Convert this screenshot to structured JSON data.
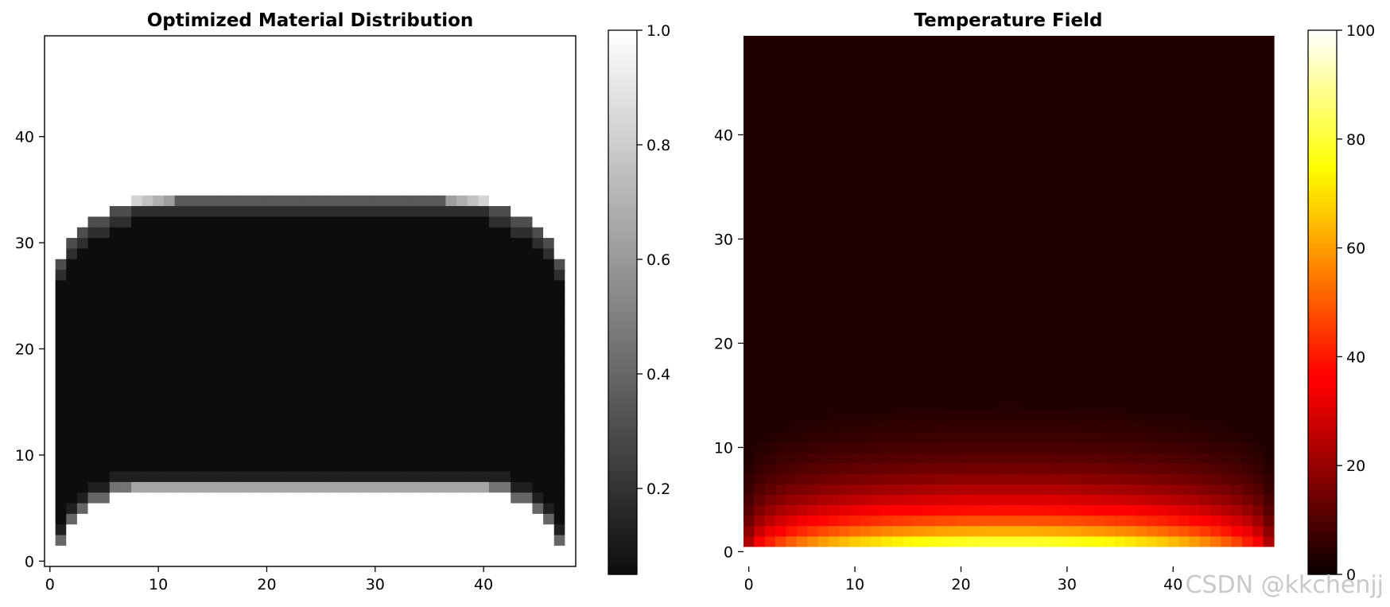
{
  "watermark": "CSDN @kkchenjj",
  "chart_data": [
    {
      "type": "heatmap",
      "title": "Optimized Material Distribution",
      "colormap": "gray",
      "grid_size": [
        49,
        50
      ],
      "xlim": [
        -0.5,
        48.5
      ],
      "ylim": [
        -0.5,
        49.5
      ],
      "x_ticks": [
        0,
        10,
        20,
        30,
        40
      ],
      "y_ticks": [
        0,
        10,
        20,
        30,
        40
      ],
      "colorbar": {
        "range": [
          0.05,
          1.0
        ],
        "ticks": [
          0.2,
          0.4,
          0.6,
          0.8,
          1.0
        ],
        "tick_labels": [
          "0.2",
          "0.4",
          "0.6",
          "0.8",
          "1.0"
        ]
      },
      "description_values": {
        "background": 1.0,
        "solid_region_rows": [
          3,
          31
        ],
        "solid_value": 0.05,
        "top_band_row": 34,
        "top_band_value": 0.35,
        "bottom_band_row": 7,
        "bottom_band_value": 0.65
      }
    },
    {
      "type": "heatmap",
      "title": "Temperature Field",
      "colormap": "hot",
      "grid_size": [
        50,
        50
      ],
      "xlim": [
        -0.5,
        49.5
      ],
      "ylim": [
        -0.5,
        49.5
      ],
      "x_ticks": [
        0,
        10,
        20,
        30,
        40
      ],
      "y_ticks": [
        0,
        10,
        20,
        30,
        40
      ],
      "colorbar": {
        "range": [
          0,
          100
        ],
        "ticks": [
          0,
          20,
          40,
          60,
          80,
          100
        ],
        "tick_labels": [
          "0",
          "20",
          "40",
          "60",
          "80",
          "100"
        ]
      },
      "description_values": {
        "bottom_boundary_row": 0,
        "bottom_boundary_value": 100,
        "background_value": 3,
        "decay_rows": 14
      }
    }
  ]
}
